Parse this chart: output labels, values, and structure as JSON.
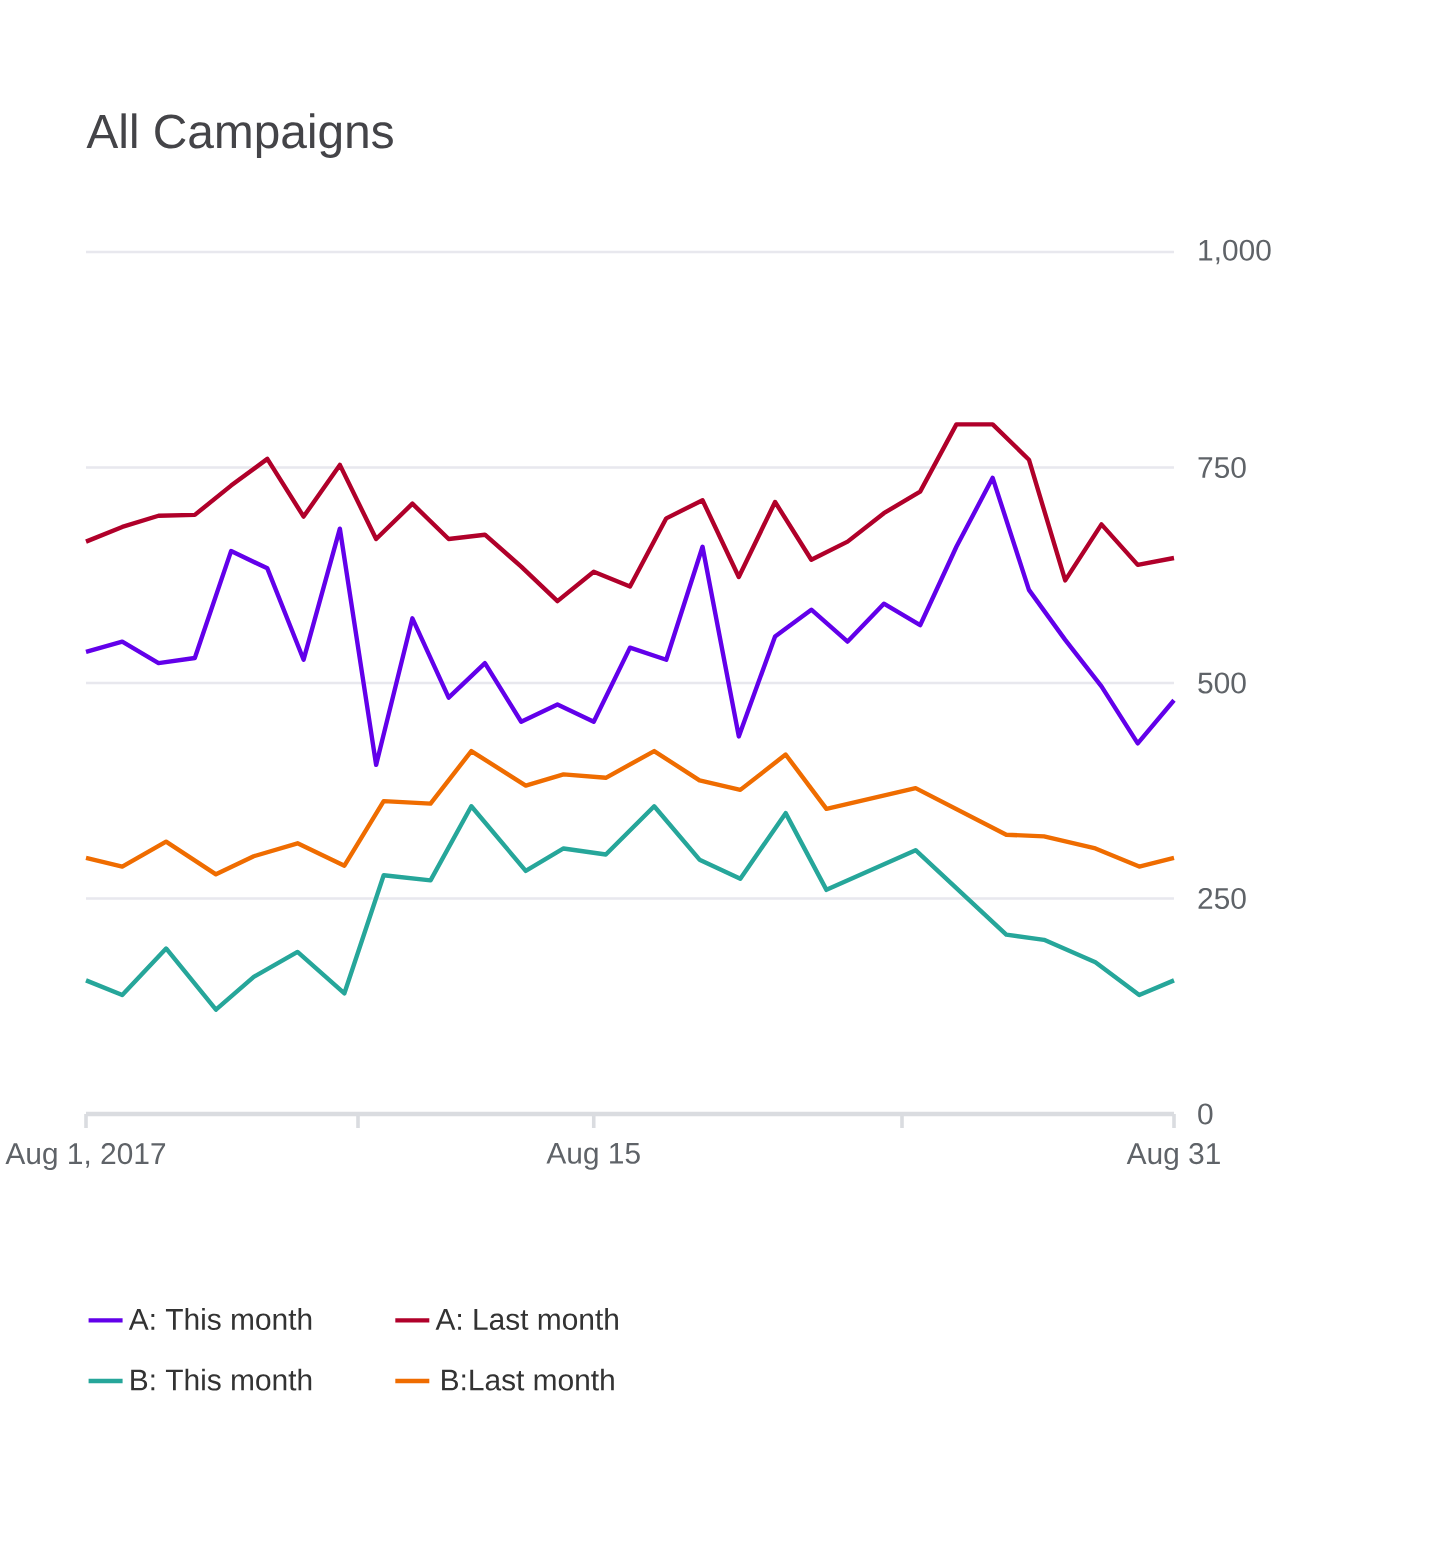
{
  "chart_data": {
    "type": "line",
    "title": "All Campaigns",
    "x": [
      "2017-08-01",
      "2017-08-02",
      "2017-08-03",
      "2017-08-04",
      "2017-08-05",
      "2017-08-06",
      "2017-08-07",
      "2017-08-08",
      "2017-08-09",
      "2017-08-10",
      "2017-08-11",
      "2017-08-12",
      "2017-08-13",
      "2017-08-14",
      "2017-08-15",
      "2017-08-16",
      "2017-08-17",
      "2017-08-18",
      "2017-08-19",
      "2017-08-20",
      "2017-08-21",
      "2017-08-22",
      "2017-08-23",
      "2017-08-24",
      "2017-08-25",
      "2017-08-26",
      "2017-08-27",
      "2017-08-28",
      "2017-08-29",
      "2017-08-30",
      "2017-08-31"
    ],
    "series": [
      {
        "name": "A: This month",
        "color": "#6200ea",
        "values": [
          536,
          548,
          523,
          529,
          653,
          633,
          527,
          679,
          405,
          575,
          483,
          523,
          455,
          475,
          455,
          541,
          527,
          658,
          438,
          554,
          585,
          548,
          592,
          567,
          658,
          738,
          608,
          550,
          496,
          430,
          480
        ]
      },
      {
        "name": "A: Last month",
        "color": "#b0002a",
        "values": [
          664,
          681,
          694,
          695,
          729,
          760,
          693,
          753,
          667,
          708,
          667,
          672,
          635,
          595,
          629,
          612,
          691,
          712,
          623,
          710,
          643,
          664,
          697,
          722,
          800,
          800,
          759,
          619,
          684,
          637,
          645
        ]
      },
      {
        "name": "B: This month",
        "color": "#26a69a",
        "x": [
          "2017-08-01",
          "2017-08-02",
          "2017-08-03T05:00",
          "2017-08-04T14:00",
          "2017-08-05T15:00",
          "2017-08-06T20:00",
          "2017-08-08T03:00",
          "2017-08-09T05:00",
          "2017-08-10T12:00",
          "2017-08-11T15:00",
          "2017-08-13T03:00",
          "2017-08-14T04:00",
          "2017-08-15T08:00",
          "2017-08-16T16:00",
          "2017-08-17T22:00",
          "2017-08-19T01:00",
          "2017-08-20T07:00",
          "2017-08-21T10:00",
          "2017-08-23T21:00",
          "2017-08-26T09:00",
          "2017-08-27T10:00",
          "2017-08-28T20:00",
          "2017-08-30T01:00",
          "2017-08-31"
        ],
        "values": [
          155,
          138,
          192,
          121,
          159,
          188,
          140,
          277,
          271,
          357,
          282,
          308,
          301,
          357,
          295,
          273,
          349,
          260,
          306,
          208,
          202,
          176,
          138,
          155
        ]
      },
      {
        "name": "B:Last month",
        "color": "#ef6c00",
        "x": [
          "2017-08-01",
          "2017-08-02",
          "2017-08-03T05:00",
          "2017-08-04T14:00",
          "2017-08-05T15:00",
          "2017-08-06T20:00",
          "2017-08-08T03:00",
          "2017-08-09T05:00",
          "2017-08-10T12:00",
          "2017-08-11T15:00",
          "2017-08-13T03:00",
          "2017-08-14T04:00",
          "2017-08-15T08:00",
          "2017-08-16T16:00",
          "2017-08-17T22:00",
          "2017-08-19T01:00",
          "2017-08-20T07:00",
          "2017-08-21T10:00",
          "2017-08-23T21:00",
          "2017-08-26T09:00",
          "2017-08-27T10:00",
          "2017-08-28T20:00",
          "2017-08-30T01:00",
          "2017-08-31"
        ],
        "values": [
          297,
          287,
          316,
          278,
          299,
          314,
          288,
          363,
          360,
          421,
          381,
          394,
          390,
          421,
          387,
          376,
          417,
          354,
          378,
          324,
          322,
          308,
          287,
          297
        ]
      }
    ],
    "xlim": [
      "2017-08-01",
      "2017-08-31"
    ],
    "xticks": [
      {
        "value": "2017-08-01",
        "label": "Aug 1, 2017"
      },
      {
        "value": "2017-08-08T12:00",
        "label": null
      },
      {
        "value": "2017-08-15",
        "label": "Aug 15"
      },
      {
        "value": "2017-08-23T12:00",
        "label": null
      },
      {
        "value": "2017-08-31",
        "label": "Aug 31"
      }
    ],
    "ylim": [
      0,
      1000
    ],
    "yticks": [
      0,
      250,
      500,
      {
        "value": 750,
        "label": "750"
      },
      {
        "value": 1000,
        "label": "1,000"
      }
    ],
    "grid": "y",
    "legend": "bottom",
    "marker": "none",
    "line_style": "solid"
  }
}
